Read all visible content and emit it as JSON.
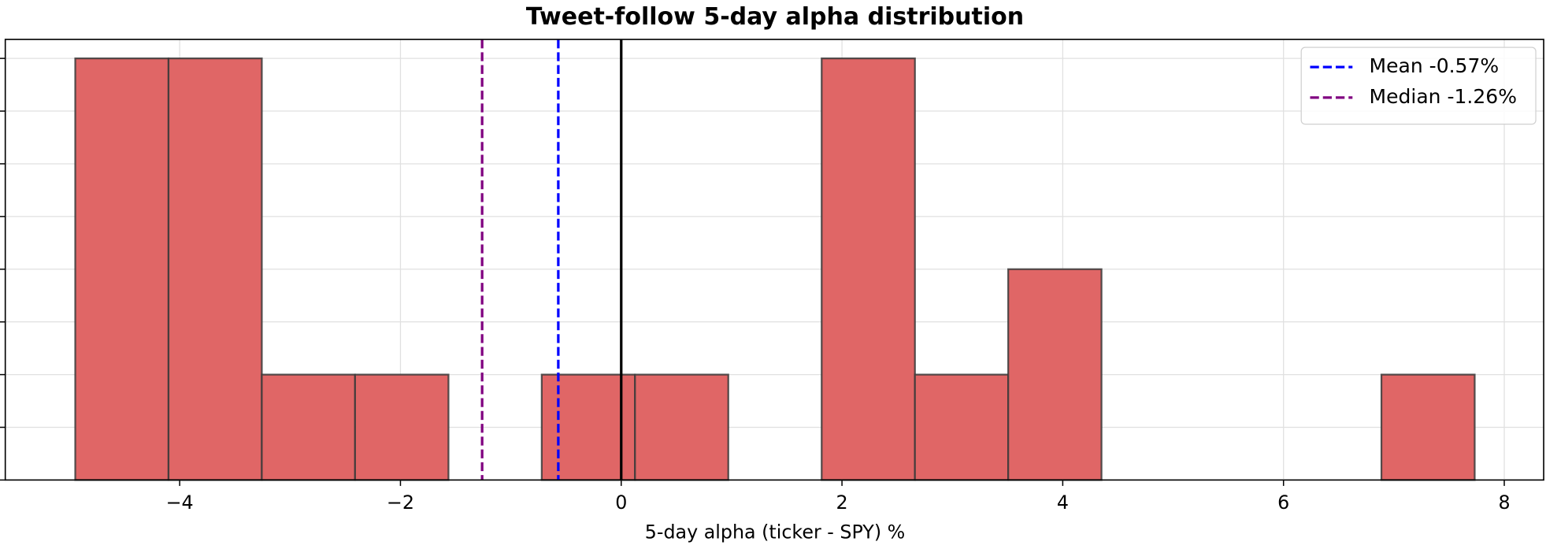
{
  "chart_data": {
    "type": "histogram",
    "title": "Tweet-follow 5-day alpha distribution",
    "x_label": "5-day alpha (ticker - SPY) %",
    "bins": [
      -4.946,
      -4.101,
      -3.256,
      -2.411,
      -1.565,
      -0.72,
      0.125,
      0.97,
      1.816,
      2.661,
      3.506,
      4.351,
      5.197,
      6.042,
      6.887,
      7.732
    ],
    "counts": [
      4,
      4,
      1,
      1,
      0,
      1,
      1,
      0,
      4,
      1,
      2,
      0,
      0,
      0,
      1
    ],
    "color": "#e06666",
    "xlim": [
      -5.58,
      8.357
    ],
    "ylim": [
      0,
      4.18
    ],
    "xticks": [
      {
        "value": -4,
        "label": "−4"
      },
      {
        "value": -2,
        "label": "−2"
      },
      0,
      2,
      4,
      6,
      8
    ],
    "yticks": [
      0,
      0.5,
      1,
      1.5,
      2,
      2.5,
      3,
      3.5,
      4
    ],
    "grid": true,
    "legend": "upper right",
    "reference_lines": [
      {
        "value": 0,
        "color": "#000000",
        "style": "solid"
      },
      {
        "name": "Mean -0.57%",
        "value": -0.57,
        "color": "#0000ff",
        "style": "dashed"
      },
      {
        "name": "Median -1.26%",
        "value": -1.26,
        "color": "#800080",
        "style": "dashed"
      }
    ]
  }
}
